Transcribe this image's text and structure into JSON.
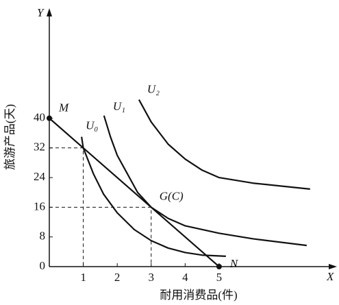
{
  "chart_data": {
    "type": "line",
    "x_axis_symbol": "X",
    "y_axis_symbol": "Y",
    "xlabel": "耐用消费品(件)",
    "ylabel": "旅游产品(天)",
    "xlim": [
      0,
      8.43
    ],
    "ylim": [
      0,
      69.1
    ],
    "xticks": [
      1,
      2,
      3,
      4,
      5
    ],
    "yticks": [
      0,
      8,
      16,
      24,
      32,
      40
    ],
    "color": "#111111",
    "series": [
      {
        "name": "U₀",
        "x": [
          0.95,
          1,
          1.3,
          1.6,
          2,
          2.5,
          3,
          3.5,
          4,
          4.5,
          5.2
        ],
        "values": [
          35,
          32,
          25,
          19.5,
          14.5,
          10,
          7,
          5,
          3.8,
          3.1,
          2.8
        ]
      },
      {
        "name": "U₁",
        "x": [
          1.61,
          1.8,
          2,
          2.3,
          2.6,
          3,
          3.5,
          4,
          5,
          6,
          7.58
        ],
        "values": [
          40.7,
          35,
          30,
          25,
          20,
          16,
          13,
          11,
          9,
          7.5,
          5.7
        ]
      },
      {
        "name": "U₂",
        "x": [
          2.64,
          3,
          3.5,
          4,
          4.5,
          5,
          6,
          7.68
        ],
        "values": [
          45,
          39,
          33,
          29,
          26,
          24,
          22.5,
          20.9
        ]
      },
      {
        "x": [
          0,
          5
        ],
        "values": [
          40,
          0
        ]
      }
    ],
    "points": [
      {
        "label": "M",
        "x": 0,
        "y": 40
      },
      {
        "label": "N",
        "x": 5,
        "y": 0
      },
      {
        "label": "G(C)",
        "x": 3,
        "y": 16
      }
    ],
    "guides": [
      {
        "x": 1,
        "y": 32
      },
      {
        "x": 3,
        "y": 16
      }
    ]
  }
}
